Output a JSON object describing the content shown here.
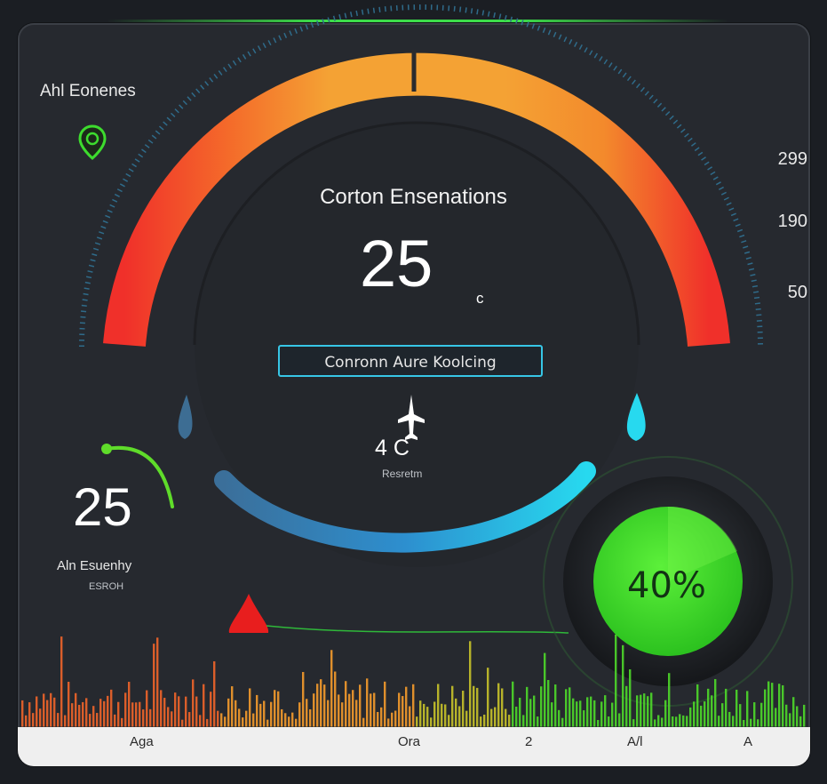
{
  "app": {
    "title": "Ahl Eonenes"
  },
  "scale": {
    "values": [
      "299",
      "190",
      "50"
    ]
  },
  "gauge": {
    "title": "Corton Ensenations",
    "value": "25",
    "unit": "c"
  },
  "mode_button": {
    "label": "Conronn Aure Koolcing"
  },
  "center": {
    "temp": "4 C",
    "sub_label": "Resretm"
  },
  "left_metric": {
    "value": "25",
    "label": "Aln Esuenhy",
    "sub_label": "ESROH"
  },
  "percent_dial": {
    "value_text": "40%",
    "level": 0.4
  },
  "bottom_axis": {
    "labels": [
      "Aga",
      "Ora",
      "2",
      "A/l",
      "A"
    ]
  },
  "icons": {
    "location": "location-pin-icon",
    "plane": "plane-icon"
  },
  "colors": {
    "background": "#26292f",
    "gauge_red": "#f0302a",
    "gauge_orange": "#f4a234",
    "cyan_accent": "#27d9ef",
    "green_accent": "#3ddc2e"
  }
}
